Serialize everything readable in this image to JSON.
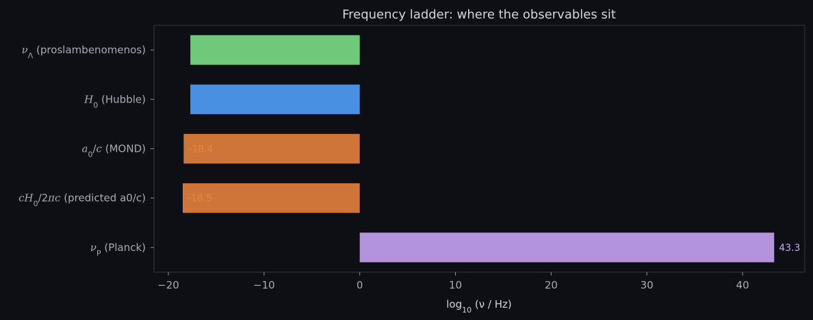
{
  "chart_data": {
    "type": "bar",
    "orientation": "horizontal",
    "title": "Frequency ladder: where the observables sit",
    "xlabel": "log10 (ν / Hz)",
    "ylabel": "",
    "xlim": [
      -21.5,
      46.5
    ],
    "xticks": [
      -20,
      -10,
      0,
      10,
      20,
      30,
      40
    ],
    "xtick_labels": [
      "−20",
      "−10",
      "0",
      "10",
      "20",
      "30",
      "40"
    ],
    "grid": false,
    "categories": [
      "νΛ (proslambenomenos)",
      "H0 (Hubble)",
      "a0/c (MOND)",
      "cH0/2πc (predicted a0/c)",
      "νP (Planck)"
    ],
    "values": [
      -17.7,
      -17.7,
      -18.4,
      -18.5,
      43.3
    ],
    "value_labels": [
      "-17.7",
      "-17.7",
      "-18.4",
      "-18.5",
      "43.3"
    ],
    "bar_colors": [
      "#6fc97a",
      "#4a90e2",
      "#cf7539",
      "#cf7539",
      "#b393db"
    ],
    "label_colors": [
      "#6fc97a",
      "#4a90e2",
      "#e08a3e",
      "#e08a3e",
      "#c9a8f0"
    ]
  }
}
